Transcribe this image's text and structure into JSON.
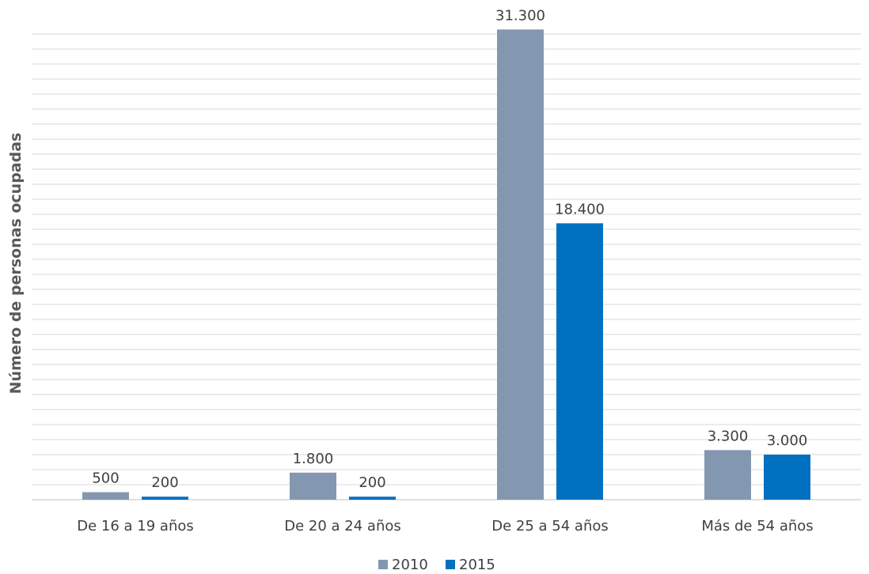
{
  "chart_data": {
    "type": "bar",
    "title": "",
    "xlabel": "",
    "ylabel": "Número de personas ocupadas",
    "categories": [
      "De 16 a 19 años",
      "De 20 a 24 años",
      "De 25 a 54 años",
      "Más de 54 años"
    ],
    "series": [
      {
        "name": "2010",
        "color": "#8497b0",
        "values": [
          500,
          1800,
          31300,
          3300
        ],
        "labels": [
          "500",
          "1.800",
          "31.300",
          "3.300"
        ]
      },
      {
        "name": "2015",
        "color": "#0070c0",
        "values": [
          200,
          200,
          18400,
          3000
        ],
        "labels": [
          "200",
          "200",
          "18.400",
          "3.000"
        ]
      }
    ],
    "ylim": [
      0,
      31000
    ],
    "grid": true,
    "legend": "bottom-center"
  }
}
